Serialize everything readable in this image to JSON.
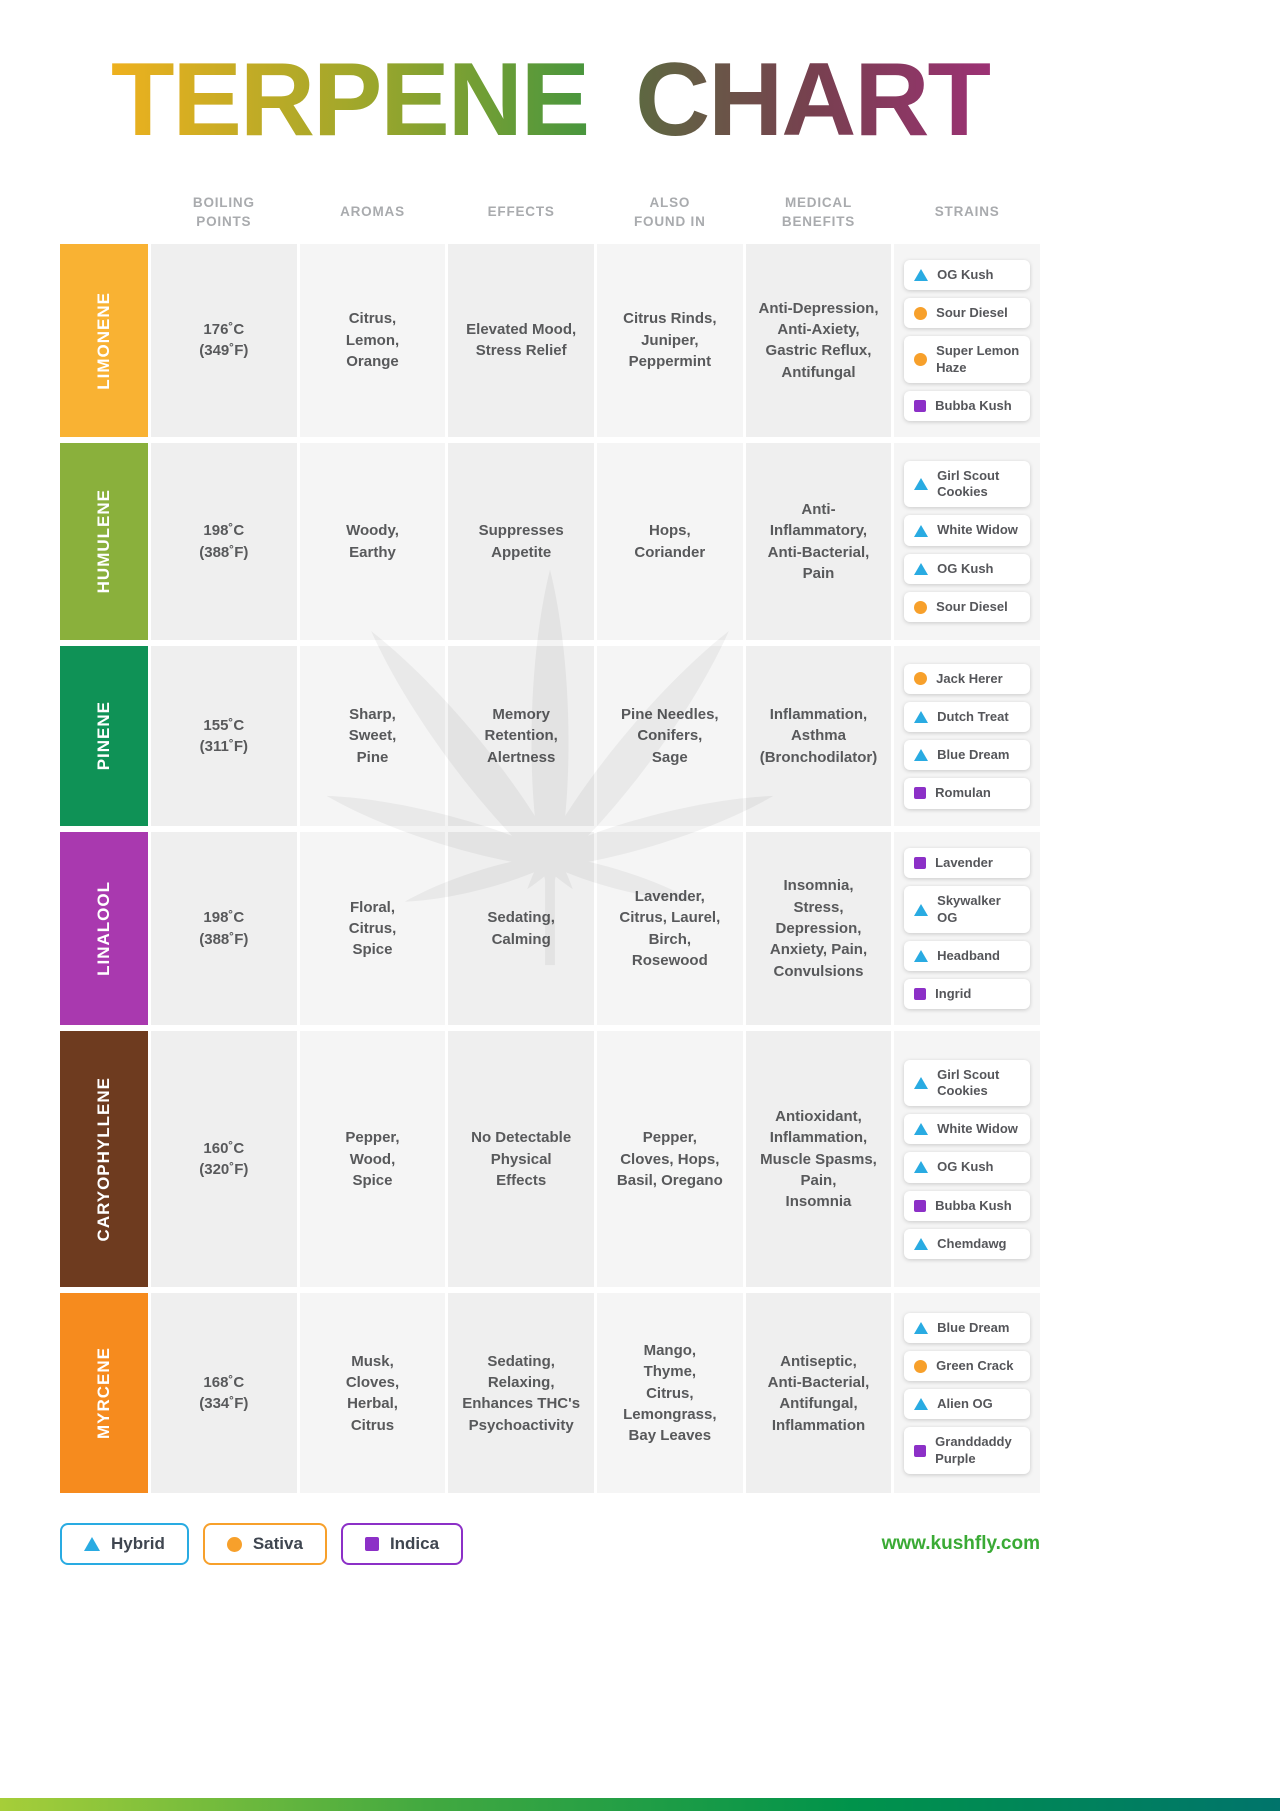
{
  "title": {
    "word_primary": "TERPENE",
    "word_secondary": "CHART"
  },
  "colors": {
    "hybrid": "#29ABE2",
    "sativa": "#F7A02B",
    "indica": "#8C30C7",
    "website": "#3AAA35",
    "title_terpene_gradient": [
      "#F0B11E",
      "#9FA72B",
      "#3E9440"
    ],
    "title_chart_gradient": [
      "#5C6B40",
      "#77404F",
      "#9E3076"
    ],
    "footer_bar_gradient": [
      "#A6CE39",
      "#42A940",
      "#00934B",
      "#00746B"
    ]
  },
  "legend": [
    {
      "label": "Hybrid",
      "type": "hybrid"
    },
    {
      "label": "Sativa",
      "type": "sativa"
    },
    {
      "label": "Indica",
      "type": "indica"
    }
  ],
  "footer": {
    "website": "www.kushfly.com"
  },
  "chart_data": {
    "type": "table",
    "title": "TERPENE CHART",
    "columns": [
      "BOILING\nPOINTS",
      "AROMAS",
      "EFFECTS",
      "ALSO\nFOUND IN",
      "MEDICAL\nBENEFITS",
      "STRAINS"
    ],
    "rows": [
      {
        "name": "LIMONENE",
        "color": "#F9B233",
        "boiling_point": "176˚C\n(349˚F)",
        "aromas": "Citrus,\nLemon,\nOrange",
        "effects": "Elevated Mood,\nStress Relief",
        "also_found_in": "Citrus Rinds,\nJuniper,\nPeppermint",
        "medical_benefits": "Anti-Depression,\nAnti-Axiety,\nGastric Reflux,\nAntifungal",
        "strains": [
          {
            "name": "OG Kush",
            "type": "hybrid"
          },
          {
            "name": "Sour Diesel",
            "type": "sativa"
          },
          {
            "name": "Super Lemon Haze",
            "type": "sativa"
          },
          {
            "name": "Bubba Kush",
            "type": "indica"
          }
        ]
      },
      {
        "name": "HUMULENE",
        "color": "#8AB03C",
        "boiling_point": "198˚C\n(388˚F)",
        "aromas": "Woody,\nEarthy",
        "effects": "Suppresses\nAppetite",
        "also_found_in": "Hops,\nCoriander",
        "medical_benefits": "Anti-\nInflammatory,\nAnti-Bacterial,\nPain",
        "strains": [
          {
            "name": "Girl Scout Cookies",
            "type": "hybrid"
          },
          {
            "name": "White Widow",
            "type": "hybrid"
          },
          {
            "name": "OG Kush",
            "type": "hybrid"
          },
          {
            "name": "Sour Diesel",
            "type": "sativa"
          }
        ]
      },
      {
        "name": "PINENE",
        "color": "#0F9256",
        "boiling_point": "155˚C\n(311˚F)",
        "aromas": "Sharp,\nSweet,\nPine",
        "effects": "Memory\nRetention,\nAlertness",
        "also_found_in": "Pine Needles,\nConifers,\nSage",
        "medical_benefits": "Inflammation,\nAsthma\n(Bronchodilator)",
        "strains": [
          {
            "name": "Jack Herer",
            "type": "sativa"
          },
          {
            "name": "Dutch Treat",
            "type": "hybrid"
          },
          {
            "name": "Blue Dream",
            "type": "hybrid"
          },
          {
            "name": "Romulan",
            "type": "indica"
          }
        ]
      },
      {
        "name": "LINALOOL",
        "color": "#A939AF",
        "boiling_point": "198˚C\n(388˚F)",
        "aromas": "Floral,\nCitrus,\nSpice",
        "effects": "Sedating,\nCalming",
        "also_found_in": "Lavender,\nCitrus, Laurel,\nBirch,\nRosewood",
        "medical_benefits": "Insomnia,\nStress,\nDepression,\nAnxiety, Pain,\nConvulsions",
        "strains": [
          {
            "name": "Lavender",
            "type": "indica"
          },
          {
            "name": "Skywalker OG",
            "type": "hybrid"
          },
          {
            "name": "Headband",
            "type": "hybrid"
          },
          {
            "name": "Ingrid",
            "type": "indica"
          }
        ]
      },
      {
        "name": "CARYOPHYLLENE",
        "color": "#6E3B1F",
        "boiling_point": "160˚C\n(320˚F)",
        "aromas": "Pepper,\nWood,\nSpice",
        "effects": "No Detectable\nPhysical\nEffects",
        "also_found_in": "Pepper,\nCloves, Hops,\nBasil, Oregano",
        "medical_benefits": "Antioxidant,\nInflammation,\nMuscle Spasms,\nPain,\nInsomnia",
        "strains": [
          {
            "name": "Girl Scout Cookies",
            "type": "hybrid"
          },
          {
            "name": "White Widow",
            "type": "hybrid"
          },
          {
            "name": "OG Kush",
            "type": "hybrid"
          },
          {
            "name": "Bubba Kush",
            "type": "indica"
          },
          {
            "name": "Chemdawg",
            "type": "hybrid"
          }
        ]
      },
      {
        "name": "MYRCENE",
        "color": "#F68B1E",
        "boiling_point": "168˚C\n(334˚F)",
        "aromas": "Musk,\nCloves,\nHerbal,\nCitrus",
        "effects": "Sedating,\nRelaxing,\nEnhances THC's\nPsychoactivity",
        "also_found_in": "Mango,\nThyme,\nCitrus,\nLemongrass,\nBay Leaves",
        "medical_benefits": "Antiseptic,\nAnti-Bacterial,\nAntifungal,\nInflammation",
        "strains": [
          {
            "name": "Blue Dream",
            "type": "hybrid"
          },
          {
            "name": "Green Crack",
            "type": "sativa"
          },
          {
            "name": "Alien OG",
            "type": "hybrid"
          },
          {
            "name": "Granddaddy Purple",
            "type": "indica"
          }
        ]
      }
    ]
  }
}
